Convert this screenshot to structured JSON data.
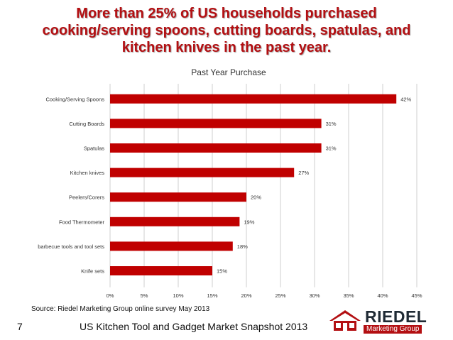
{
  "slide": {
    "title_lines": [
      "More than 25% of US households purchased",
      "cooking/serving spoons, cutting boards, spatulas, and",
      "kitchen knives in the past year."
    ],
    "source": "Source:  Riedel Marketing Group online survey May 2013",
    "slide_number": "7",
    "footer": "US Kitchen Tool and Gadget Market Snapshot 2013",
    "logo": {
      "word": "RIEDEL",
      "sub": "Marketing Group"
    },
    "colors": {
      "title": "#b30f12",
      "bar": "#c00000",
      "accent": "#b30f12"
    }
  },
  "chart_data": {
    "type": "bar",
    "orientation": "horizontal",
    "title": "Past Year Purchase",
    "categories": [
      "Cooking/Serving Spoons",
      "Cutting Boards",
      "Spatulas",
      "Kitchen knives",
      "Peelers/Corers",
      "Food Thermometer",
      "barbecue tools and tool sets",
      "Knife sets"
    ],
    "values": [
      42,
      31,
      31,
      27,
      20,
      19,
      18,
      15
    ],
    "value_labels": [
      "42%",
      "31%",
      "31%",
      "27%",
      "20%",
      "19%",
      "18%",
      "15%"
    ],
    "xlim": [
      0,
      45
    ],
    "x_ticks": [
      0,
      5,
      10,
      15,
      20,
      25,
      30,
      35,
      40,
      45
    ],
    "x_tick_labels": [
      "0%",
      "5%",
      "10%",
      "15%",
      "20%",
      "25%",
      "30%",
      "35%",
      "40%",
      "45%"
    ],
    "grid": true,
    "legend": "none"
  }
}
